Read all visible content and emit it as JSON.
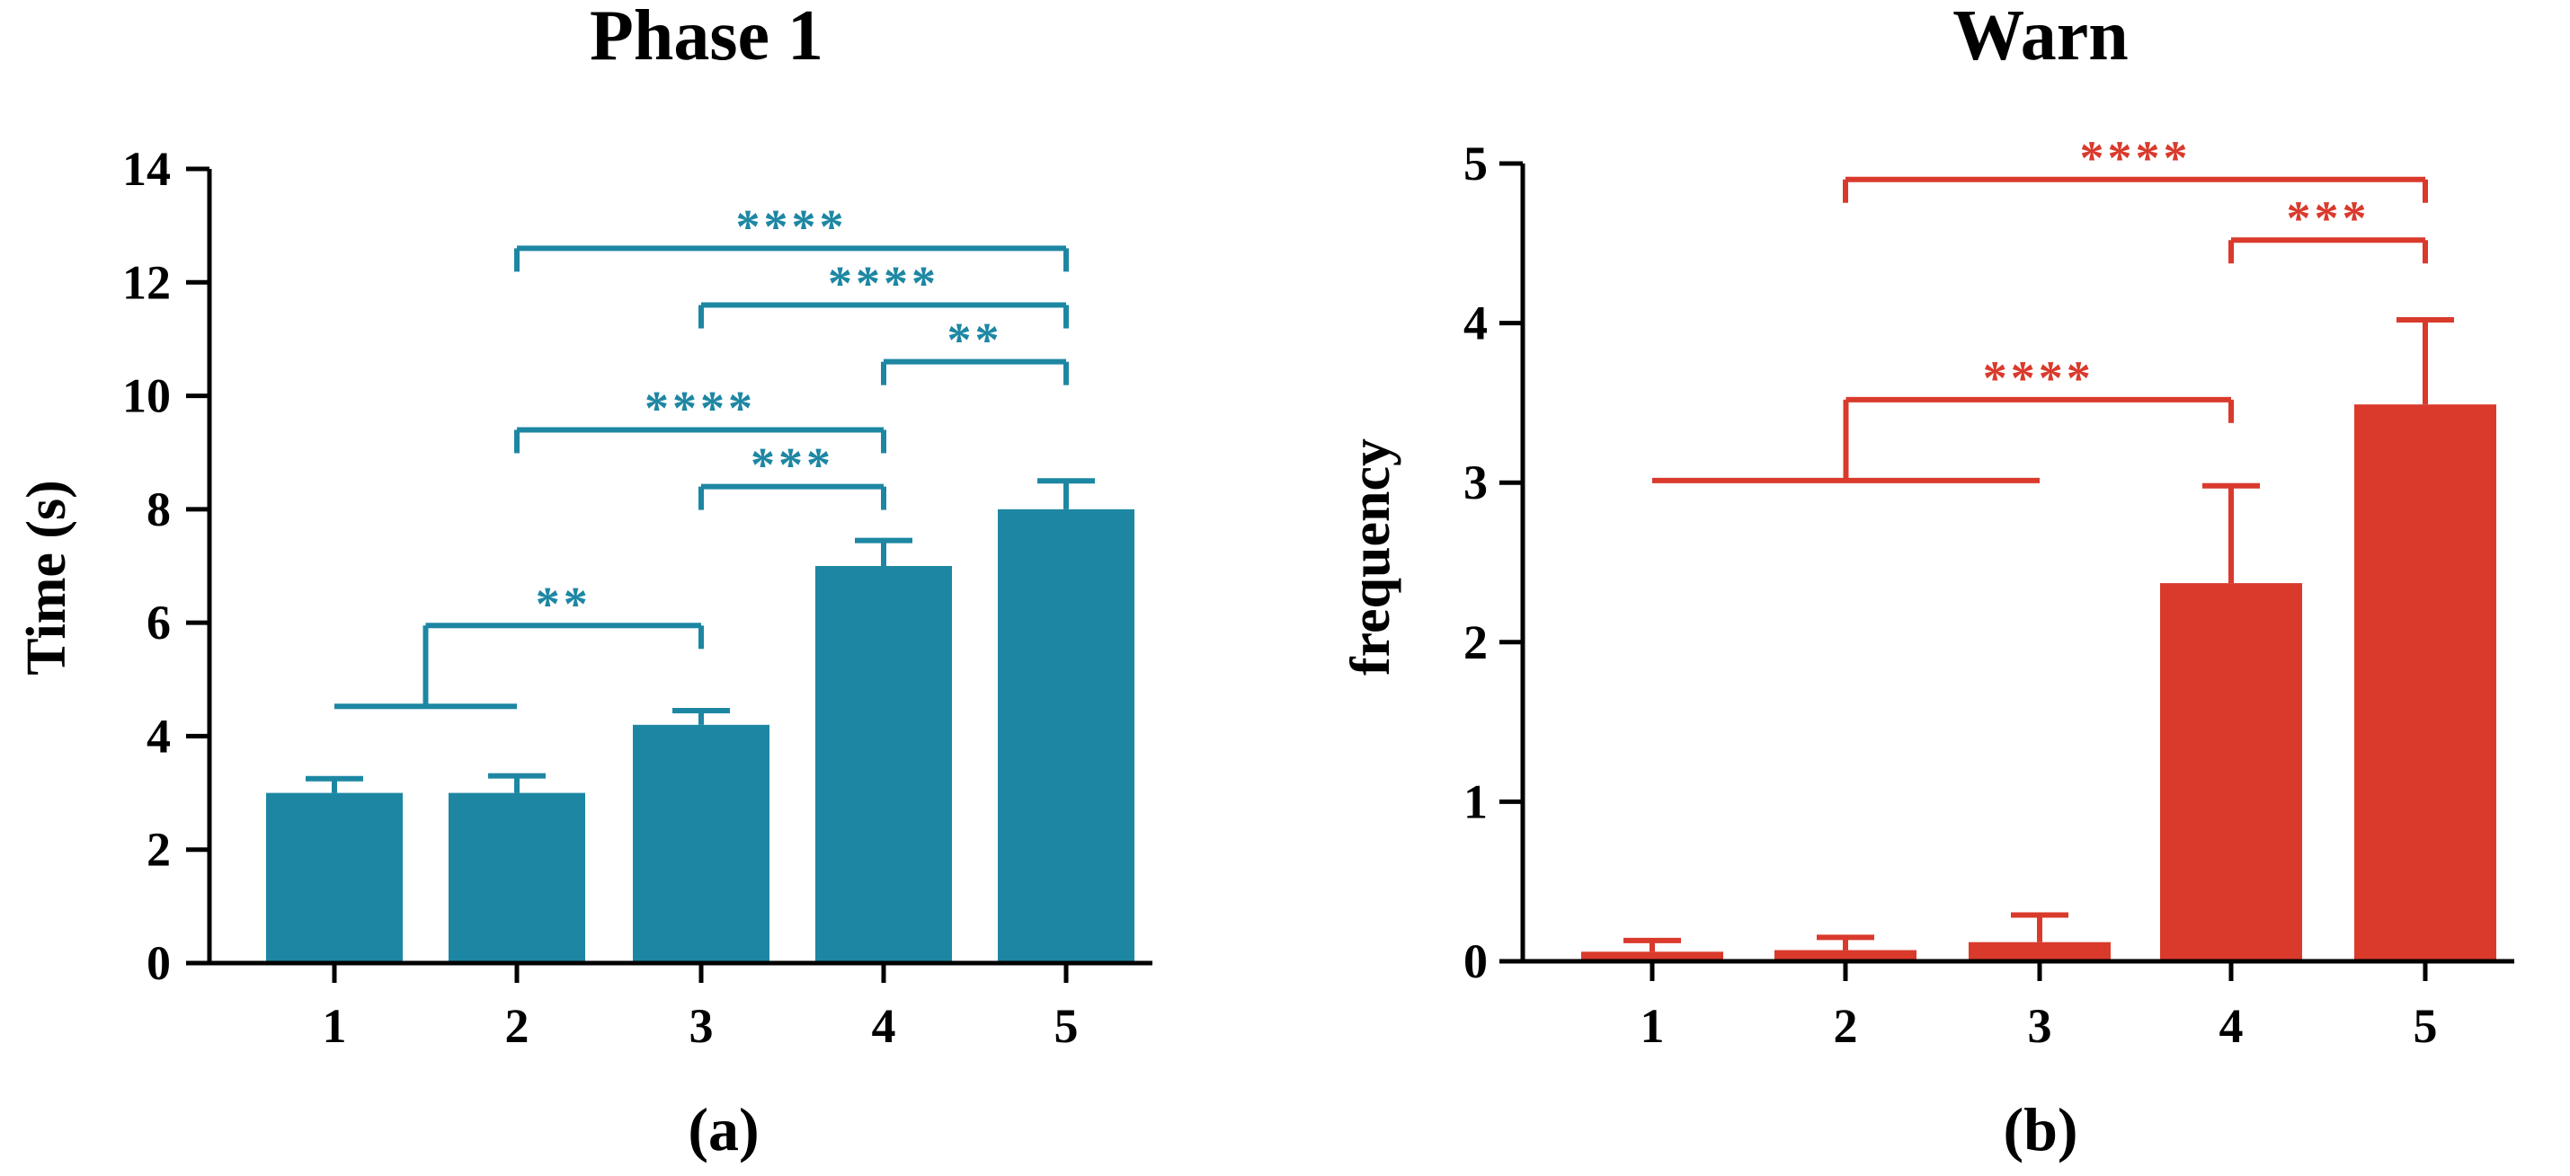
{
  "chart_data": [
    {
      "type": "bar",
      "title": "Phase 1",
      "xlabel": "",
      "ylabel": "Time (s)",
      "panel_label": "(a)",
      "color": "#1d87a3",
      "categories": [
        "1",
        "2",
        "3",
        "4",
        "5"
      ],
      "values": [
        3.0,
        3.0,
        4.2,
        7.0,
        8.0
      ],
      "errors": [
        0.25,
        0.3,
        0.25,
        0.45,
        0.5
      ],
      "ylim": [
        0,
        14
      ],
      "yticks": [
        "0",
        "2",
        "4",
        "6",
        "8",
        "10",
        "12",
        "14"
      ],
      "significance": [
        {
          "label": "**",
          "from": [
            "1",
            "2"
          ],
          "to": [
            "3"
          ],
          "y": 5.95
        },
        {
          "label": "***",
          "from": [
            "3"
          ],
          "to": [
            "4"
          ],
          "y": 8.4
        },
        {
          "label": "****",
          "from": [
            "2"
          ],
          "to": [
            "4"
          ],
          "y": 9.4
        },
        {
          "label": "**",
          "from": [
            "4"
          ],
          "to": [
            "5"
          ],
          "y": 10.6
        },
        {
          "label": "****",
          "from": [
            "3"
          ],
          "to": [
            "5"
          ],
          "y": 11.6
        },
        {
          "label": "****",
          "from": [
            "2"
          ],
          "to": [
            "5"
          ],
          "y": 12.6
        }
      ]
    },
    {
      "type": "bar",
      "title": "Warn",
      "xlabel": "",
      "ylabel": "frequency",
      "panel_label": "(b)",
      "color": "#d93a2c",
      "categories": [
        "1",
        "2",
        "3",
        "4",
        "5"
      ],
      "values": [
        0.06,
        0.07,
        0.12,
        2.37,
        3.49
      ],
      "errors": [
        0.07,
        0.08,
        0.17,
        0.61,
        0.53
      ],
      "ylim": [
        0,
        5
      ],
      "yticks": [
        "0",
        "1",
        "2",
        "3",
        "4",
        "5"
      ],
      "significance": [
        {
          "label": "****",
          "from": [
            "1",
            "2",
            "3"
          ],
          "to": [
            "4"
          ],
          "y": 3.52
        },
        {
          "label": "***",
          "from": [
            "4"
          ],
          "to": [
            "5"
          ],
          "y": 4.52
        },
        {
          "label": "****",
          "from": [
            "2"
          ],
          "to": [
            "5"
          ],
          "y": 4.9
        }
      ]
    }
  ]
}
